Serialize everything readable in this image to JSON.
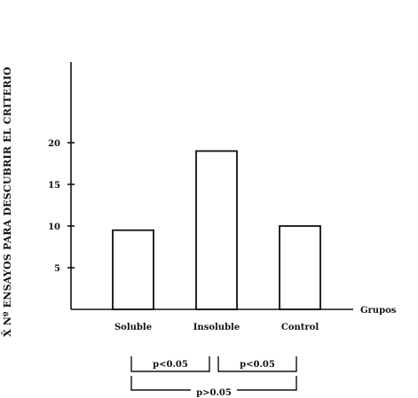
{
  "chart_data": {
    "type": "bar",
    "ylabel": "X̄ Nº ENSAYOS PARA DESCUBRIR EL CRITERIO",
    "xlabel": "Grupos",
    "categories": [
      "Soluble",
      "Insoluble",
      "Control"
    ],
    "values": [
      9.5,
      19,
      10
    ],
    "ylim": [
      0,
      30
    ],
    "yticks": [
      5,
      10,
      15,
      20
    ],
    "grid": false,
    "comparisons": [
      {
        "between": [
          "Soluble",
          "Insoluble"
        ],
        "label": "p<0.05"
      },
      {
        "between": [
          "Insoluble",
          "Control"
        ],
        "label": "p<0.05"
      },
      {
        "between": [
          "Soluble",
          "Control"
        ],
        "label": "p>0.05"
      }
    ]
  }
}
